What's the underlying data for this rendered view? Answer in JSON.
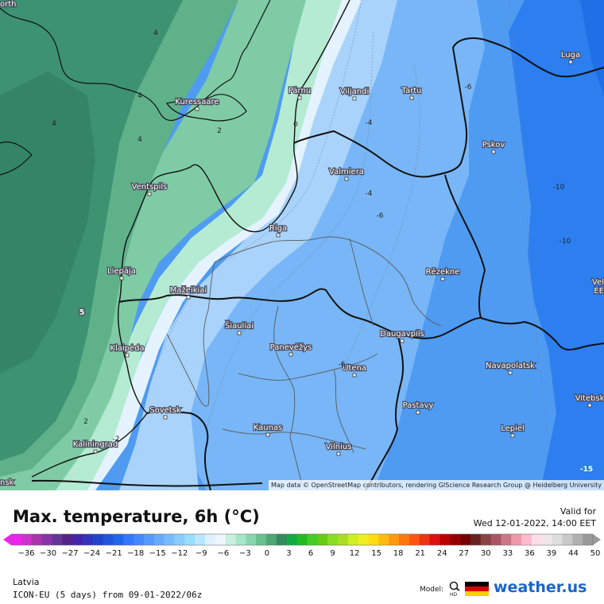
{
  "map": {
    "attribution": "Map data © OpenStreetMap contributors, rendering GIScience Research Group @ Heidelberg University",
    "cities": [
      {
        "name": "Riga"
      },
      {
        "name": "Pärnu"
      },
      {
        "name": "Viljandi"
      },
      {
        "name": "Tartu"
      },
      {
        "name": "Kuressaare"
      },
      {
        "name": "Valmiera"
      },
      {
        "name": "Ventspils"
      },
      {
        "name": "Liepāja"
      },
      {
        "name": "Mažeikiai"
      },
      {
        "name": "Šiauliai"
      },
      {
        "name": "Panevėžys"
      },
      {
        "name": "Klaipėda"
      },
      {
        "name": "Sovetsk"
      },
      {
        "name": "Kaunas"
      },
      {
        "name": "Kaliningrad"
      },
      {
        "name": "Vilnius"
      },
      {
        "name": "Utena"
      },
      {
        "name": "Daugavpils"
      },
      {
        "name": "Rēzekne"
      },
      {
        "name": "Pskov"
      },
      {
        "name": "Luga"
      },
      {
        "name": "Navapolatsk"
      },
      {
        "name": "Pastavy"
      },
      {
        "name": "Lepiel"
      },
      {
        "name": "Vitebsk"
      }
    ],
    "contour_labels": [
      "4",
      "4",
      "4",
      "4",
      "2",
      "0",
      "-4",
      "-4",
      "-6",
      "-6",
      "-10",
      "-10",
      "2",
      "-2",
      "-6",
      "-15",
      "5"
    ],
    "edge_labels": {
      "top_left": "orth",
      "bottom_left": "nsk",
      "right_mid": "Vel",
      "right_mid2": "EE"
    }
  },
  "footer": {
    "title": "Max. temperature, 6h (°C)",
    "valid_label": "Valid for",
    "valid_time": "Wed 12-01-2022, 14:00 EET",
    "region": "Latvia",
    "model_run": "ICON-EU (5 days) from 09-01-2022/06z",
    "model_label": "Model:",
    "hd_label": "HD",
    "brand": "weather.us"
  },
  "legend": {
    "ticks": [
      "-36",
      "-30",
      "-27",
      "-24",
      "-21",
      "-18",
      "-15",
      "-12",
      "-9",
      "-6",
      "-3",
      "0",
      "3",
      "6",
      "9",
      "12",
      "15",
      "18",
      "21",
      "24",
      "27",
      "30",
      "33",
      "36",
      "39",
      "44",
      "50"
    ],
    "colors": [
      "#ee22ee",
      "#cc33cc",
      "#aa33aa",
      "#8833aa",
      "#663399",
      "#552288",
      "#4422aa",
      "#3333bb",
      "#2244cc",
      "#2255dd",
      "#2266ee",
      "#3377ff",
      "#4488ff",
      "#5599ff",
      "#66aaff",
      "#77bbff",
      "#88ccff",
      "#99ddff",
      "#bbe6ff",
      "#ddf2ff",
      "#eef7ff",
      "#c8f0dd",
      "#a6e6c8",
      "#88d6ae",
      "#66c08f",
      "#4da874",
      "#338c5e",
      "#11aa44",
      "#22bb22",
      "#44cc22",
      "#66cc11",
      "#88dd22",
      "#aadd22",
      "#ccee22",
      "#eeee22",
      "#ffdd11",
      "#ffbb11",
      "#ff9911",
      "#ff7711",
      "#ff5511",
      "#ee3311",
      "#dd1111",
      "#bb0000",
      "#990000",
      "#770000",
      "#662222",
      "#884444",
      "#aa5566",
      "#cc7788",
      "#ee99aa",
      "#ffbbcc",
      "#ffdde6",
      "#f0e6ea",
      "#dddddd",
      "#c8c8c8",
      "#b0b0b0",
      "#999999"
    ]
  },
  "colors": {
    "sea_dark": "#3d9272",
    "sea_mid": "#5fb18a",
    "land_green": "#7fcba5",
    "land_light": "#b4ebd2",
    "near_zero": "#e4f3ff",
    "blue_light": "#a9d3fb",
    "blue_mid": "#78b6f7",
    "blue_deep": "#4f9bf2",
    "blue_deeper": "#2d7ff0",
    "brand_blue": "#1a66cc"
  }
}
